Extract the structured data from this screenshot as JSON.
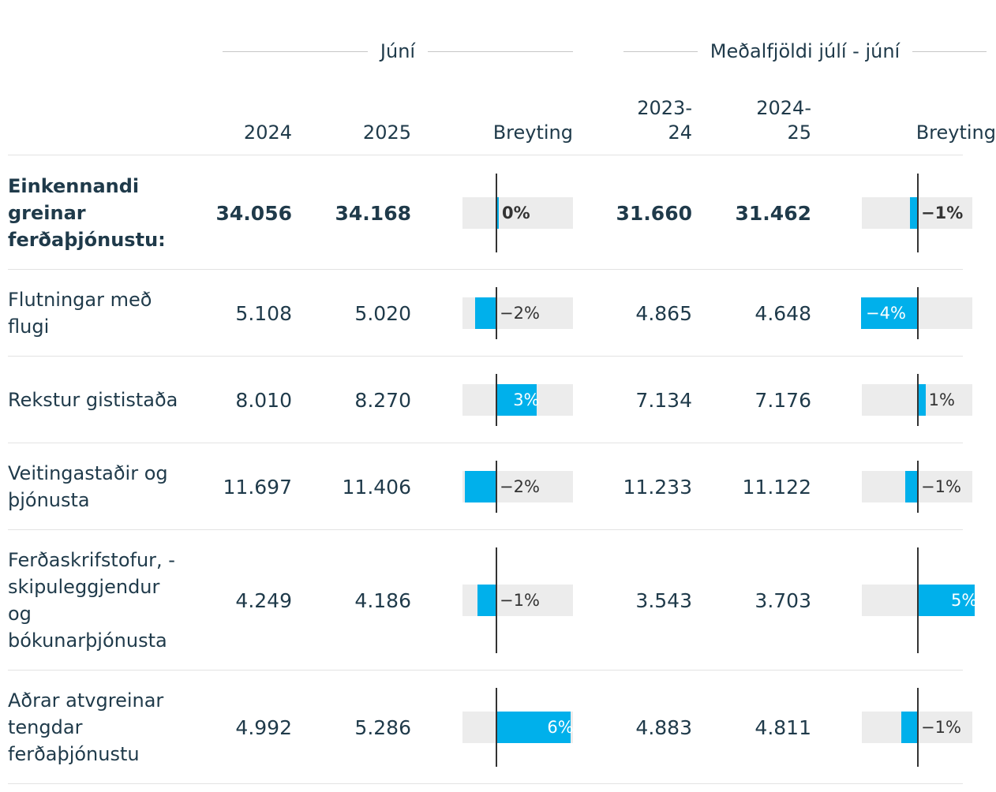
{
  "table": {
    "groups": [
      {
        "id": "june",
        "label": "Júní"
      },
      {
        "id": "avg",
        "label": "Meðalfjöldi júlí - júní"
      }
    ],
    "columns": {
      "c2024": "2024",
      "c2025": "2025",
      "change1": "Breyting",
      "c2324": "2023-\n24",
      "c2425": "2024-\n25",
      "change2": "Breyting"
    },
    "rows": [
      {
        "label": "Einkennandi greinar ferðaþjónustu:",
        "bold": true,
        "v2024": "34.056",
        "v2025": "34.168",
        "ch1": 0,
        "ch1_label": "0%",
        "v2324": "31.660",
        "v2425": "31.462",
        "ch2": -0.6,
        "ch2_label": "−1%"
      },
      {
        "label": "Flutningar með flugi",
        "bold": false,
        "v2024": "5.108",
        "v2025": "5.020",
        "ch1": -1.7,
        "ch1_label": "−2%",
        "v2324": "4.865",
        "v2425": "4.648",
        "ch2": -4.5,
        "ch2_label": "−4%"
      },
      {
        "label": "Rekstur gististaða",
        "bold": false,
        "v2024": "8.010",
        "v2025": "8.270",
        "ch1": 3.2,
        "ch1_label": "3%",
        "v2324": "7.134",
        "v2425": "7.176",
        "ch2": 0.6,
        "ch2_label": "1%"
      },
      {
        "label": "Veitingastaðir og þjónusta",
        "bold": false,
        "v2024": "11.697",
        "v2025": "11.406",
        "ch1": -2.5,
        "ch1_label": "−2%",
        "v2324": "11.233",
        "v2425": "11.122",
        "ch2": -1.0,
        "ch2_label": "−1%"
      },
      {
        "label": "Ferðaskrifstofur, -skipuleggjendur og bókunarþjónusta",
        "bold": false,
        "v2024": "4.249",
        "v2025": "4.186",
        "ch1": -1.5,
        "ch1_label": "−1%",
        "v2324": "3.543",
        "v2425": "3.703",
        "ch2": 4.5,
        "ch2_label": "5%"
      },
      {
        "label": "Aðrar atvgreinar tengdar ferðaþjónustu",
        "bold": false,
        "v2024": "4.992",
        "v2025": "5.286",
        "ch1": 5.9,
        "ch1_label": "6%",
        "v2324": "4.883",
        "v2425": "4.811",
        "ch2": -1.3,
        "ch2_label": "−1%"
      }
    ]
  },
  "chart_data": {
    "type": "table",
    "title": "",
    "column_groups": [
      "Júní",
      "Meðalfjöldi júlí - júní"
    ],
    "columns": [
      "2024",
      "2025",
      "Breyting",
      "2023-24",
      "2024-25",
      "Breyting"
    ],
    "categories": [
      "Einkennandi greinar ferðaþjónustu:",
      "Flutningar með flugi",
      "Rekstur gististaða",
      "Veitingastaðir og þjónusta",
      "Ferðaskrifstofur, -skipuleggjendur og bókunarþjónusta",
      "Aðrar atvgreinar tengdar ferðaþjónustu"
    ],
    "series": [
      {
        "name": "Júní 2024",
        "values": [
          34056,
          5108,
          8010,
          11697,
          4249,
          4992
        ]
      },
      {
        "name": "Júní 2025",
        "values": [
          34168,
          5020,
          8270,
          11406,
          4186,
          5286
        ]
      },
      {
        "name": "Breyting júní (%)",
        "values": [
          0,
          -2,
          3,
          -2,
          -1,
          6
        ]
      },
      {
        "name": "Meðalfjöldi 2023-24",
        "values": [
          31660,
          4865,
          7134,
          11233,
          3543,
          4883
        ]
      },
      {
        "name": "Meðalfjöldi 2024-25",
        "values": [
          31462,
          4648,
          7176,
          11122,
          3703,
          4811
        ]
      },
      {
        "name": "Breyting meðalfjöldi (%)",
        "values": [
          -1,
          -4,
          1,
          -1,
          5,
          -1
        ]
      }
    ],
    "bar_color": "#00b0eb"
  }
}
